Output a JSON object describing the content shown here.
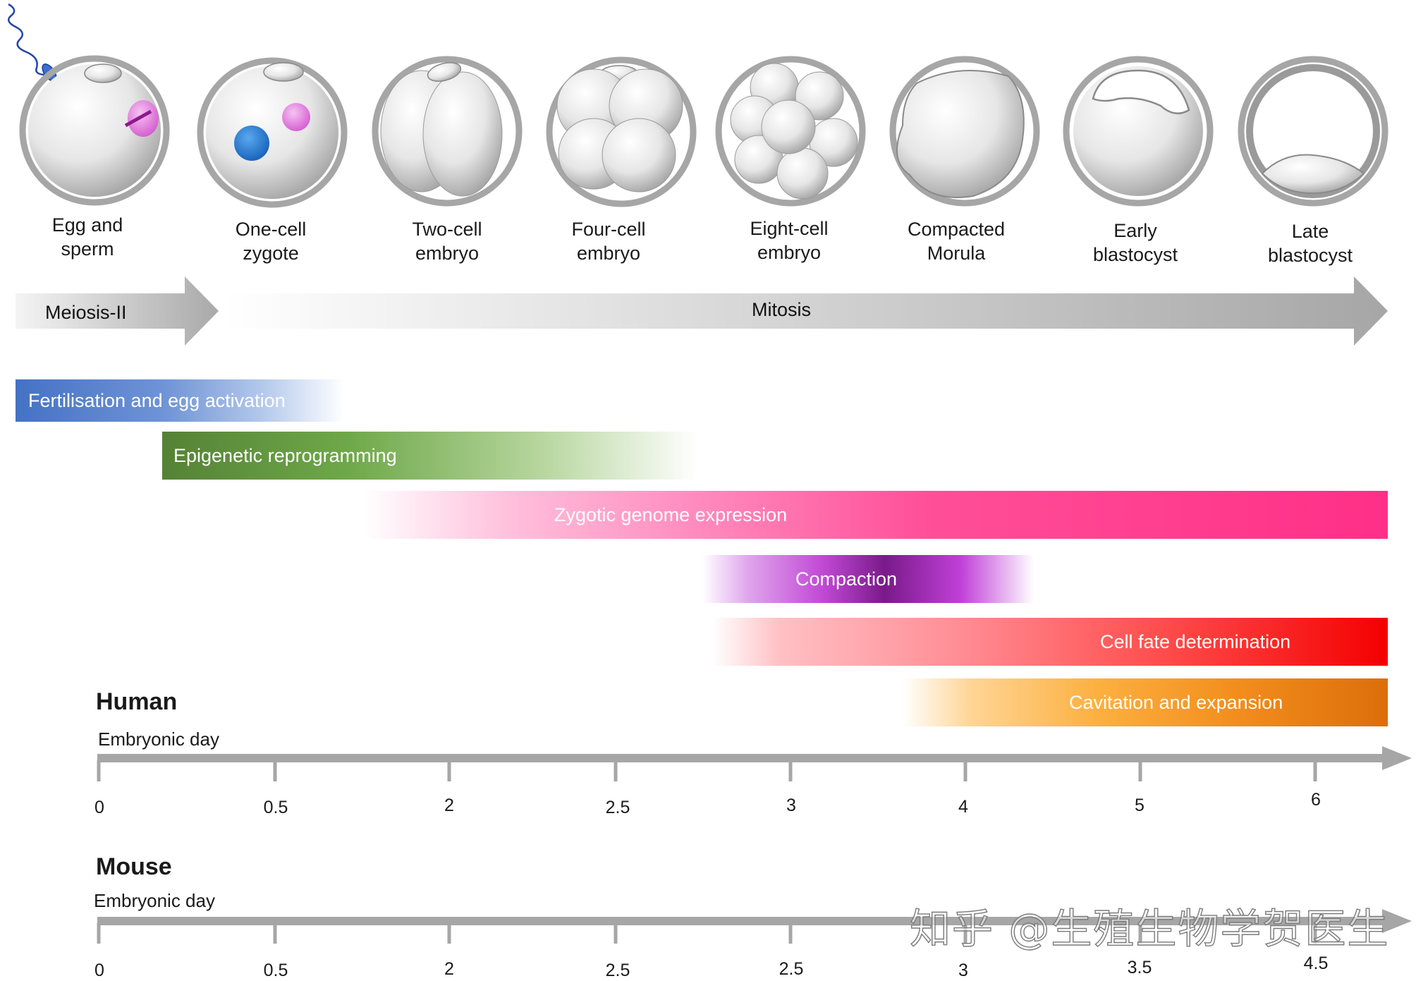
{
  "stages": [
    {
      "label": "Egg and\nsperm"
    },
    {
      "label": "One-cell\nzygote"
    },
    {
      "label": "Two-cell\nembryo"
    },
    {
      "label": "Four-cell\nembryo"
    },
    {
      "label": "Eight-cell\nembryo"
    },
    {
      "label": "Compacted\nMorula"
    },
    {
      "label": "Early\nblastocyst"
    },
    {
      "label": "Late\nblastocyst"
    }
  ],
  "division_arrows": {
    "meiosis": "Meiosis-II",
    "mitosis": "Mitosis"
  },
  "processes": [
    {
      "label": "Fertilisation and egg activation",
      "color": "#4472c4"
    },
    {
      "label": "Epigenetic reprogramming",
      "color": "#548235"
    },
    {
      "label": "Zygotic genome expression",
      "color": "#ff2f87"
    },
    {
      "label": "Compaction",
      "color": "#a020c0"
    },
    {
      "label": "Cell fate determination",
      "color": "#f40000"
    },
    {
      "label": "Cavitation and expansion",
      "color": "#e07010"
    }
  ],
  "timelines": [
    {
      "species": "Human",
      "axis_title": "Embryonic day",
      "ticks": [
        "0",
        "0.5",
        "2",
        "2.5",
        "3",
        "4",
        "5",
        "6"
      ]
    },
    {
      "species": "Mouse",
      "axis_title": "Embryonic day",
      "ticks": [
        "0",
        "0.5",
        "2",
        "2.5",
        "2.5",
        "3",
        "3.5",
        "4.5"
      ]
    }
  ],
  "watermark": "知乎 @生殖生物学贺医生"
}
